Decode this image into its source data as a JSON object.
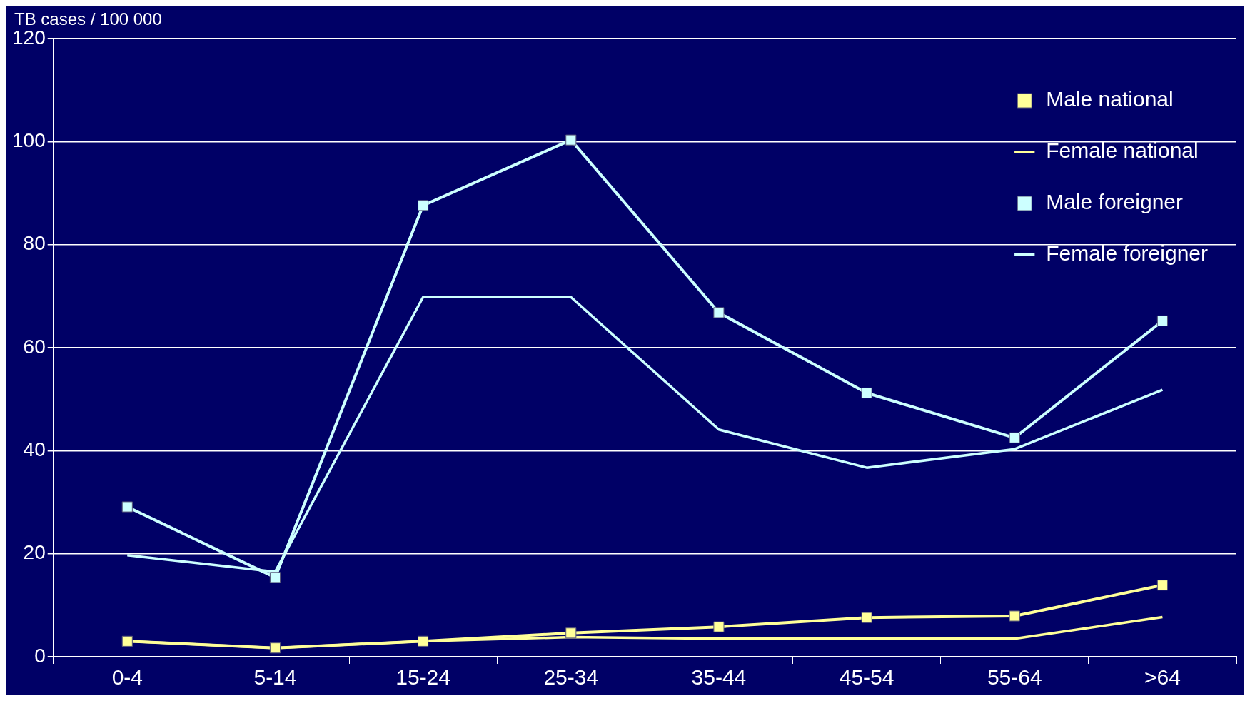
{
  "chart_data": {
    "type": "line",
    "ylabel": "TB cases / 100 000",
    "categories": [
      "0-4",
      "5-14",
      "15-24",
      "25-34",
      "35-44",
      "45-54",
      "55-64",
      ">64"
    ],
    "series": [
      {
        "name": "Male national",
        "color": "#ffff99",
        "marker": "square",
        "values": [
          3.0,
          1.7,
          3.0,
          4.6,
          5.8,
          7.6,
          7.9,
          13.9
        ]
      },
      {
        "name": "Female national",
        "color": "#ffff99",
        "marker": "none",
        "values": [
          3.0,
          1.7,
          3.0,
          3.8,
          3.5,
          3.5,
          3.5,
          7.7
        ]
      },
      {
        "name": "Male foreigner",
        "color": "#ccffff",
        "marker": "square",
        "values": [
          29.1,
          15.4,
          87.6,
          100.3,
          66.8,
          51.2,
          42.5,
          65.2
        ]
      },
      {
        "name": "Female foreigner",
        "color": "#ccffff",
        "marker": "none",
        "values": [
          19.7,
          16.5,
          69.8,
          69.8,
          44.1,
          36.7,
          40.3,
          51.8
        ]
      }
    ],
    "ylim": [
      0,
      120
    ],
    "yticks": [
      0,
      20,
      40,
      60,
      80,
      100,
      120
    ],
    "grid": "y",
    "legend": "top right",
    "line_style": "solid"
  }
}
